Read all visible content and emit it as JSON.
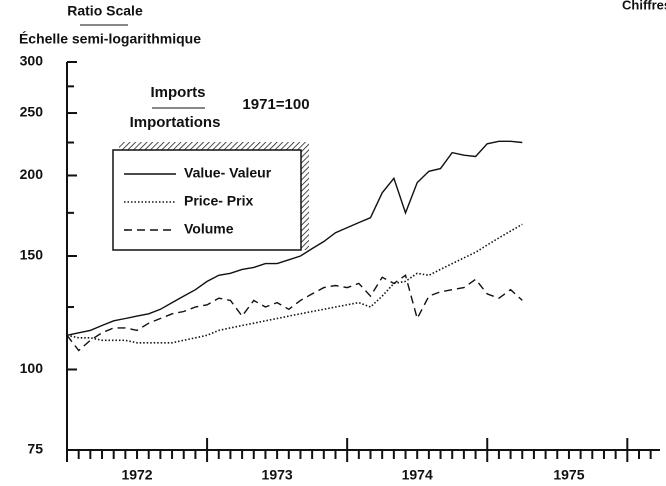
{
  "chart_data": {
    "type": "line",
    "note_top_right": "Chiffres corrigés",
    "scale_label": "Ratio Scale",
    "scale_label_fr": "Échelle semi-logarithmique",
    "title": "Imports",
    "title_fr": "Importations",
    "base_label": "1971=100",
    "log_y": true,
    "ylim": [
      75,
      300
    ],
    "yticks": [
      75,
      100,
      150,
      200,
      250,
      300
    ],
    "yminor_ticks": [
      125,
      175,
      225,
      275
    ],
    "xlim": [
      0,
      50.8
    ],
    "xticks": [
      0,
      12,
      24,
      36,
      48
    ],
    "xminor_ticks": [
      1,
      2,
      3,
      4,
      5,
      6,
      7,
      8,
      9,
      10,
      11,
      13,
      14,
      15,
      16,
      17,
      18,
      19,
      20,
      21,
      22,
      23,
      25,
      26,
      27,
      28,
      29,
      30,
      31,
      32,
      33,
      34,
      35,
      37,
      38,
      39,
      40,
      41,
      42,
      43,
      44,
      45,
      46,
      47,
      49,
      50
    ],
    "x_labels": [
      {
        "value": 6,
        "label": "1972"
      },
      {
        "value": 18,
        "label": "1973"
      },
      {
        "value": 30,
        "label": "1974"
      },
      {
        "value": 43,
        "label": "1975"
      }
    ],
    "x": [
      0,
      1,
      2,
      3,
      4,
      5,
      6,
      7,
      8,
      9,
      10,
      11,
      12,
      13,
      14,
      15,
      16,
      17,
      18,
      19,
      20,
      21,
      22,
      23,
      24,
      25,
      26,
      27,
      28,
      29,
      30,
      31,
      32,
      33,
      34,
      35,
      36,
      37,
      38,
      39
    ],
    "series": [
      {
        "name": "Value- Valeur",
        "color": "#111111",
        "dash": "solid",
        "values": [
          113,
          114,
          115,
          117,
          119,
          120,
          121,
          122,
          124,
          127,
          130,
          133,
          137,
          140,
          141,
          143,
          144,
          146,
          146,
          148,
          150,
          154,
          158,
          163,
          166,
          169,
          172,
          188,
          198,
          175,
          195,
          203,
          205,
          217,
          215,
          214,
          224,
          226,
          226,
          225
        ]
      },
      {
        "name": "Price- Prix",
        "color": "#111111",
        "dash": "dotted",
        "values": [
          113,
          112,
          112,
          111,
          111,
          111,
          110,
          110,
          110,
          110,
          111,
          112,
          113,
          115,
          116,
          117,
          118,
          119,
          120,
          121,
          122,
          123,
          124,
          125,
          126,
          127,
          125,
          130,
          136,
          137,
          141,
          140,
          143,
          146,
          149,
          152,
          156,
          160,
          164,
          168
        ]
      },
      {
        "name": "Volume",
        "color": "#111111",
        "dash": "dashed",
        "values": [
          113,
          107,
          111,
          114,
          116,
          116,
          115,
          118,
          120,
          122,
          123,
          125,
          126,
          129,
          128,
          121,
          128,
          125,
          127,
          124,
          128,
          131,
          134,
          135,
          134,
          136,
          130,
          139,
          136,
          140,
          120,
          130,
          132,
          133,
          134,
          138,
          131,
          129,
          133,
          128
        ]
      }
    ],
    "legend": "upper left"
  }
}
